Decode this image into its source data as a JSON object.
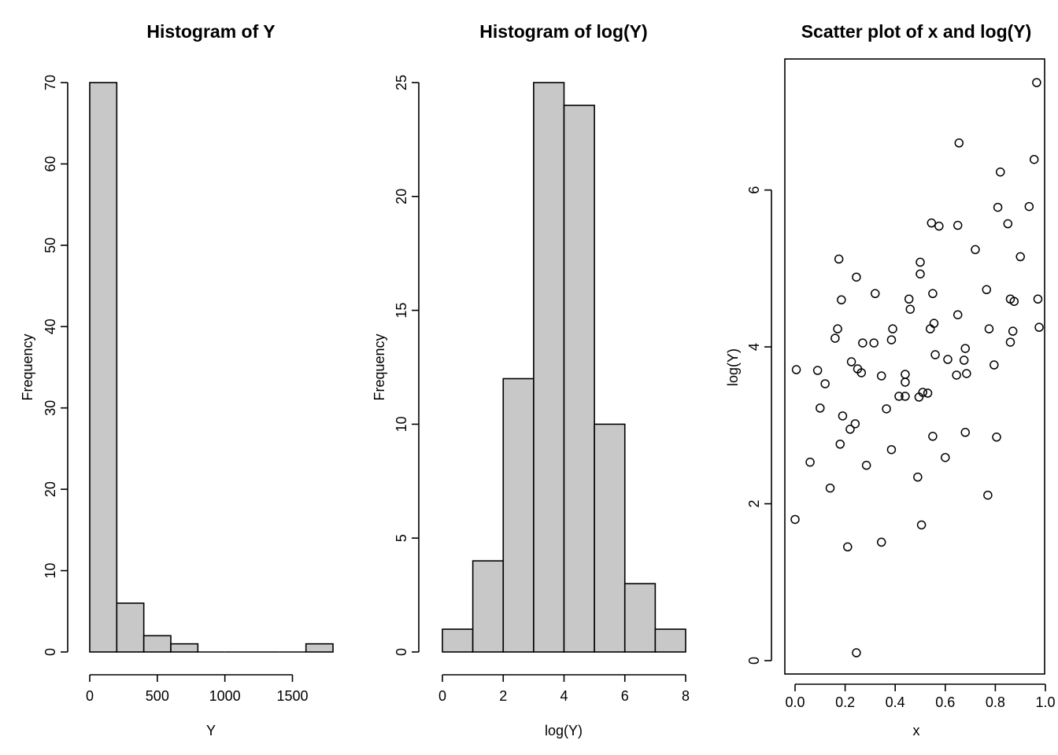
{
  "chart_data": [
    {
      "type": "bar",
      "title": "Histogram of Y",
      "xlabel": "Y",
      "ylabel": "Frequency",
      "bin_edges": [
        0,
        200,
        400,
        600,
        800,
        1000,
        1200,
        1400,
        1600,
        1800
      ],
      "values": [
        70,
        6,
        2,
        1,
        0,
        0,
        0,
        0,
        1
      ],
      "xticks": [
        0,
        500,
        1000,
        1500
      ],
      "yticks": [
        0,
        10,
        20,
        30,
        40,
        50,
        60,
        70
      ],
      "xlim": [
        0,
        1800
      ],
      "ylim": [
        0,
        70
      ]
    },
    {
      "type": "bar",
      "title": "Histogram of log(Y)",
      "xlabel": "log(Y)",
      "ylabel": "Frequency",
      "bin_edges": [
        0,
        1,
        2,
        3,
        4,
        5,
        6,
        7,
        8
      ],
      "values": [
        1,
        4,
        12,
        25,
        24,
        10,
        3,
        1
      ],
      "xticks": [
        0,
        2,
        4,
        6,
        8
      ],
      "yticks": [
        0,
        5,
        10,
        15,
        20,
        25
      ],
      "xlim": [
        0,
        8
      ],
      "ylim": [
        0,
        25
      ]
    },
    {
      "type": "scatter",
      "title": "Scatter plot of x and log(Y)",
      "xlabel": "x",
      "ylabel": "log(Y)",
      "xticks": [
        0.0,
        0.2,
        0.4,
        0.6,
        0.8,
        1.0
      ],
      "xtick_labels": [
        "0.0",
        "0.2",
        "0.4",
        "0.6",
        "0.8",
        "1.0"
      ],
      "yticks": [
        0,
        2,
        4,
        6
      ],
      "xlim": [
        -0.04,
        1.0
      ],
      "ylim": [
        -0.2,
        7.7
      ],
      "points": [
        [
          0.0,
          1.8
        ],
        [
          0.005,
          3.71
        ],
        [
          0.06,
          2.53
        ],
        [
          0.09,
          3.7
        ],
        [
          0.1,
          3.22
        ],
        [
          0.12,
          3.53
        ],
        [
          0.14,
          2.2
        ],
        [
          0.16,
          4.11
        ],
        [
          0.17,
          4.23
        ],
        [
          0.175,
          5.12
        ],
        [
          0.18,
          2.76
        ],
        [
          0.185,
          4.6
        ],
        [
          0.19,
          3.12
        ],
        [
          0.21,
          1.45
        ],
        [
          0.22,
          2.95
        ],
        [
          0.225,
          3.81
        ],
        [
          0.24,
          3.02
        ],
        [
          0.245,
          4.89
        ],
        [
          0.245,
          0.1
        ],
        [
          0.25,
          3.72
        ],
        [
          0.265,
          3.67
        ],
        [
          0.27,
          4.05
        ],
        [
          0.285,
          2.49
        ],
        [
          0.315,
          4.05
        ],
        [
          0.32,
          4.68
        ],
        [
          0.345,
          1.51
        ],
        [
          0.345,
          3.63
        ],
        [
          0.365,
          3.21
        ],
        [
          0.385,
          2.69
        ],
        [
          0.385,
          4.09
        ],
        [
          0.39,
          4.23
        ],
        [
          0.415,
          3.37
        ],
        [
          0.44,
          3.37
        ],
        [
          0.44,
          3.55
        ],
        [
          0.44,
          3.65
        ],
        [
          0.455,
          4.61
        ],
        [
          0.46,
          4.48
        ],
        [
          0.49,
          2.34
        ],
        [
          0.495,
          3.36
        ],
        [
          0.5,
          4.93
        ],
        [
          0.5,
          5.08
        ],
        [
          0.505,
          1.73
        ],
        [
          0.51,
          3.42
        ],
        [
          0.53,
          3.41
        ],
        [
          0.54,
          4.23
        ],
        [
          0.545,
          5.58
        ],
        [
          0.55,
          4.68
        ],
        [
          0.55,
          2.86
        ],
        [
          0.555,
          4.3
        ],
        [
          0.56,
          3.9
        ],
        [
          0.575,
          5.54
        ],
        [
          0.6,
          2.59
        ],
        [
          0.61,
          3.84
        ],
        [
          0.645,
          3.64
        ],
        [
          0.65,
          5.55
        ],
        [
          0.65,
          4.41
        ],
        [
          0.655,
          6.6
        ],
        [
          0.675,
          3.83
        ],
        [
          0.68,
          3.98
        ],
        [
          0.68,
          2.91
        ],
        [
          0.685,
          3.66
        ],
        [
          0.72,
          5.24
        ],
        [
          0.765,
          4.73
        ],
        [
          0.77,
          2.11
        ],
        [
          0.775,
          4.23
        ],
        [
          0.795,
          3.77
        ],
        [
          0.805,
          2.85
        ],
        [
          0.81,
          5.78
        ],
        [
          0.82,
          6.23
        ],
        [
          0.85,
          5.57
        ],
        [
          0.86,
          4.06
        ],
        [
          0.86,
          4.61
        ],
        [
          0.87,
          4.2
        ],
        [
          0.875,
          4.58
        ],
        [
          0.9,
          5.15
        ],
        [
          0.935,
          5.79
        ],
        [
          0.955,
          6.39
        ],
        [
          0.965,
          7.37
        ],
        [
          0.97,
          4.61
        ],
        [
          0.975,
          4.25
        ]
      ]
    }
  ]
}
